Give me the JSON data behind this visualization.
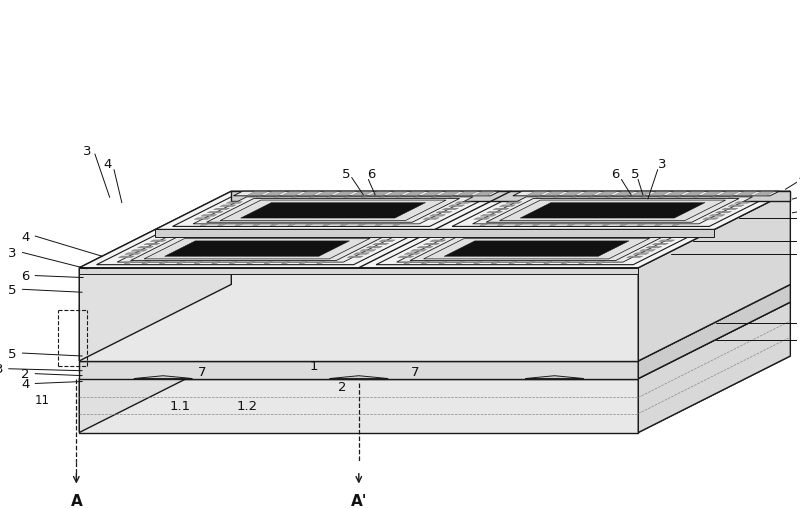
{
  "figsize": [
    8.0,
    5.1
  ],
  "dpi": 100,
  "bg_color": "#ffffff",
  "line_color": "#1a1a1a",
  "lw_main": 1.0,
  "lw_thin": 0.6,
  "fc_top": "#f5f5f5",
  "fc_front": "#e8e8e8",
  "fc_right": "#d8d8d8",
  "fc_black": "#111111",
  "fc_gray": "#aaaaaa",
  "fc_light": "#f0f0f0",
  "fc_mid": "#e0e0e0"
}
